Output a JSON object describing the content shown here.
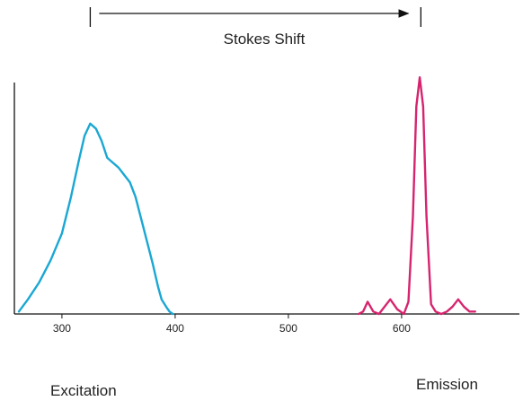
{
  "chart_data": {
    "type": "line",
    "title": "",
    "xlabel": "",
    "ylabel": "",
    "xlim": [
      258,
      665
    ],
    "ylim": [
      0,
      1.0
    ],
    "grid": false,
    "legend": "none",
    "xticks": [
      300,
      400,
      500,
      600
    ],
    "xtick_labels": [
      "300",
      "400",
      "500",
      "600"
    ],
    "series": [
      {
        "color": "#1aa7d4",
        "x": [
          262,
          270,
          280,
          290,
          300,
          308,
          315,
          320,
          325,
          330,
          335,
          340,
          345,
          350,
          355,
          360,
          365,
          370,
          375,
          380,
          385,
          388,
          392,
          395,
          398
        ],
        "y": [
          0.01,
          0.06,
          0.13,
          0.22,
          0.33,
          0.48,
          0.63,
          0.73,
          0.78,
          0.76,
          0.71,
          0.64,
          0.62,
          0.6,
          0.57,
          0.54,
          0.48,
          0.39,
          0.3,
          0.21,
          0.11,
          0.06,
          0.03,
          0.01,
          0.0
        ]
      },
      {
        "color": "#d6246e",
        "x": [
          562,
          566,
          570,
          575,
          580,
          585,
          590,
          596,
          602,
          606,
          610,
          613,
          616,
          619,
          622,
          626,
          630,
          635,
          640,
          645,
          650,
          655,
          660,
          665
        ],
        "y": [
          0.0,
          0.01,
          0.05,
          0.01,
          0.0,
          0.03,
          0.06,
          0.02,
          0.0,
          0.05,
          0.4,
          0.85,
          0.97,
          0.85,
          0.4,
          0.04,
          0.01,
          0.0,
          0.01,
          0.03,
          0.06,
          0.03,
          0.01,
          0.01
        ]
      }
    ],
    "annotations": {
      "stokes_shift": "Stokes Shift",
      "stokes_from": 325,
      "stokes_to": 617,
      "excitation": "Excitation",
      "emission": "Emission"
    }
  }
}
